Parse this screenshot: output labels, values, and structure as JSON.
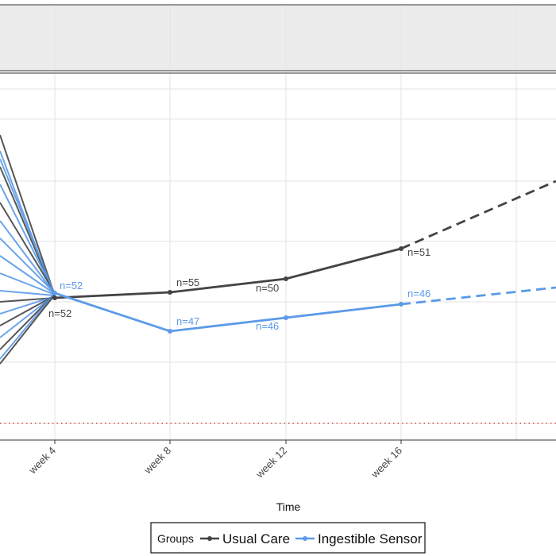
{
  "chart_data": {
    "type": "line",
    "xlabel": "Time",
    "categories": [
      "week 4",
      "week 8",
      "week 12",
      "week 16"
    ],
    "grid": true,
    "reference_line": {
      "style": "dotted",
      "color": "#cc2222"
    },
    "legend": {
      "placement": "bottom",
      "title": "Groups"
    },
    "series": [
      {
        "name": "Usual Care",
        "color": "#444444",
        "points": [
          {
            "x": "week 4",
            "n_label": "n=52"
          },
          {
            "x": "week 8",
            "n_label": "n=55"
          },
          {
            "x": "week 12",
            "n_label": "n=50"
          },
          {
            "x": "week 16",
            "n_label": "n=51"
          }
        ],
        "projection": "dashed"
      },
      {
        "name": "Ingestible Sensor",
        "color": "#5b9ae8",
        "points": [
          {
            "x": "week 4",
            "n_label": "n=52"
          },
          {
            "x": "week 8",
            "n_label": "n=47"
          },
          {
            "x": "week 12",
            "n_label": "n=46"
          },
          {
            "x": "week 16",
            "n_label": "n=46"
          }
        ],
        "projection": "dashed"
      }
    ]
  }
}
